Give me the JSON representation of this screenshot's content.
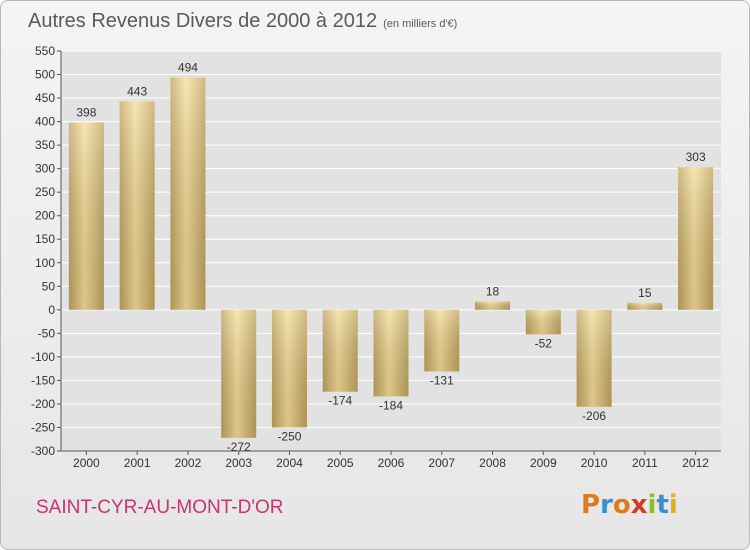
{
  "header": {
    "title": "Autres Revenus Divers de 2000 à 2012",
    "subtitle": "(en milliers d'€)"
  },
  "footer": {
    "commune": "SAINT-CYR-AU-MONT-D'OR",
    "logo_text": "Proxiti",
    "logo_colors": [
      "#e07b1c",
      "#3a8fd0",
      "#e07b1c",
      "#d43a2a",
      "#8bbf2a",
      "#3a8fd0",
      "#e0b01c"
    ]
  },
  "colors": {
    "bar_light": "#f5dc96",
    "bar_dark": "#c0a45e",
    "grid": "#ffffff",
    "axis_text": "#333333"
  },
  "chart_data": {
    "type": "bar",
    "categories": [
      "2000",
      "2001",
      "2002",
      "2003",
      "2004",
      "2005",
      "2006",
      "2007",
      "2008",
      "2009",
      "2010",
      "2011",
      "2012"
    ],
    "values": [
      398,
      443,
      494,
      -272,
      -250,
      -174,
      -184,
      -131,
      18,
      -52,
      -206,
      15,
      303
    ],
    "value_labels": [
      "398",
      "443",
      "494",
      "-272",
      "-250",
      "-174",
      "-184",
      "-131",
      "18",
      "-52",
      "-206",
      "15",
      "303"
    ],
    "title": "Autres Revenus Divers de 2000 à 2012",
    "xlabel": "",
    "ylabel": "",
    "ylim": [
      -300,
      550
    ],
    "yticks": [
      -300,
      -250,
      -200,
      -150,
      -100,
      -50,
      0,
      50,
      100,
      150,
      200,
      250,
      300,
      350,
      400,
      450,
      500,
      550
    ],
    "grid": true,
    "legend": "none"
  }
}
